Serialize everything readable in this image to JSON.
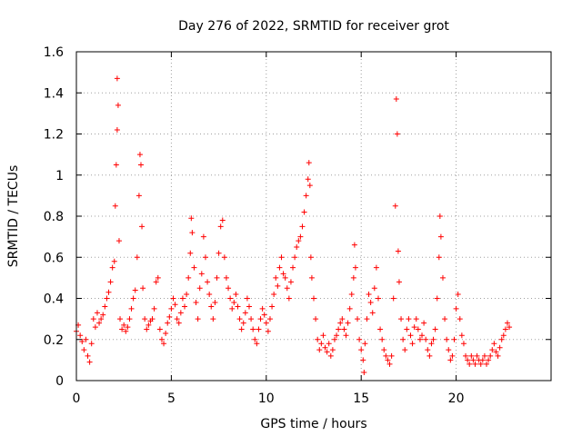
{
  "chart_data": {
    "type": "scatter",
    "title": "Day 276 of 2022, SRMTID for receiver grot",
    "xlabel": "GPS time / hours",
    "ylabel": "SRMTID / TECUs",
    "xlim": [
      0,
      25
    ],
    "ylim": [
      0,
      1.6
    ],
    "xticks": [
      0,
      5,
      10,
      15,
      20
    ],
    "xtick_labels": [
      "0",
      "5",
      "10",
      "15",
      "20"
    ],
    "yticks": [
      0,
      0.2,
      0.4,
      0.6,
      0.8,
      1.0,
      1.2,
      1.4,
      1.6
    ],
    "ytick_labels": [
      "0",
      "0.2",
      "0.4",
      "0.6",
      "0.8",
      "1",
      "1.2",
      "1.4",
      "1.6"
    ],
    "grid": true,
    "marker": "plus",
    "marker_color": "#ff0000",
    "series": [
      {
        "name": "SRMTID",
        "points": [
          [
            0.0,
            0.24
          ],
          [
            0.1,
            0.27
          ],
          [
            0.2,
            0.22
          ],
          [
            0.3,
            0.19
          ],
          [
            0.4,
            0.15
          ],
          [
            0.5,
            0.2
          ],
          [
            0.6,
            0.12
          ],
          [
            0.7,
            0.09
          ],
          [
            0.8,
            0.18
          ],
          [
            0.9,
            0.3
          ],
          [
            1.0,
            0.26
          ],
          [
            1.1,
            0.33
          ],
          [
            1.2,
            0.28
          ],
          [
            1.3,
            0.3
          ],
          [
            1.4,
            0.32
          ],
          [
            1.5,
            0.36
          ],
          [
            1.6,
            0.4
          ],
          [
            1.7,
            0.43
          ],
          [
            1.8,
            0.48
          ],
          [
            1.9,
            0.55
          ],
          [
            2.0,
            0.58
          ],
          [
            2.05,
            0.85
          ],
          [
            2.1,
            1.05
          ],
          [
            2.15,
            1.22
          ],
          [
            2.15,
            1.47
          ],
          [
            2.2,
            1.34
          ],
          [
            2.25,
            0.68
          ],
          [
            2.3,
            0.3
          ],
          [
            2.4,
            0.25
          ],
          [
            2.5,
            0.27
          ],
          [
            2.6,
            0.24
          ],
          [
            2.7,
            0.26
          ],
          [
            2.8,
            0.3
          ],
          [
            2.9,
            0.35
          ],
          [
            3.0,
            0.4
          ],
          [
            3.1,
            0.44
          ],
          [
            3.2,
            0.6
          ],
          [
            3.3,
            0.9
          ],
          [
            3.35,
            1.1
          ],
          [
            3.4,
            1.05
          ],
          [
            3.45,
            0.75
          ],
          [
            3.5,
            0.45
          ],
          [
            3.6,
            0.3
          ],
          [
            3.7,
            0.25
          ],
          [
            3.8,
            0.27
          ],
          [
            3.9,
            0.29
          ],
          [
            4.0,
            0.3
          ],
          [
            4.1,
            0.35
          ],
          [
            4.2,
            0.48
          ],
          [
            4.3,
            0.5
          ],
          [
            4.4,
            0.25
          ],
          [
            4.5,
            0.2
          ],
          [
            4.6,
            0.18
          ],
          [
            4.7,
            0.23
          ],
          [
            4.8,
            0.28
          ],
          [
            4.9,
            0.31
          ],
          [
            5.0,
            0.35
          ],
          [
            5.1,
            0.4
          ],
          [
            5.2,
            0.37
          ],
          [
            5.3,
            0.3
          ],
          [
            5.4,
            0.28
          ],
          [
            5.5,
            0.33
          ],
          [
            5.6,
            0.4
          ],
          [
            5.7,
            0.36
          ],
          [
            5.8,
            0.42
          ],
          [
            5.9,
            0.5
          ],
          [
            6.0,
            0.62
          ],
          [
            6.05,
            0.79
          ],
          [
            6.1,
            0.72
          ],
          [
            6.2,
            0.55
          ],
          [
            6.3,
            0.38
          ],
          [
            6.4,
            0.3
          ],
          [
            6.5,
            0.45
          ],
          [
            6.6,
            0.52
          ],
          [
            6.7,
            0.7
          ],
          [
            6.8,
            0.6
          ],
          [
            6.9,
            0.48
          ],
          [
            7.0,
            0.42
          ],
          [
            7.1,
            0.36
          ],
          [
            7.2,
            0.3
          ],
          [
            7.3,
            0.38
          ],
          [
            7.4,
            0.5
          ],
          [
            7.5,
            0.62
          ],
          [
            7.6,
            0.75
          ],
          [
            7.7,
            0.78
          ],
          [
            7.8,
            0.6
          ],
          [
            7.9,
            0.5
          ],
          [
            8.0,
            0.45
          ],
          [
            8.1,
            0.4
          ],
          [
            8.2,
            0.35
          ],
          [
            8.3,
            0.38
          ],
          [
            8.4,
            0.42
          ],
          [
            8.5,
            0.36
          ],
          [
            8.6,
            0.3
          ],
          [
            8.7,
            0.25
          ],
          [
            8.8,
            0.28
          ],
          [
            8.9,
            0.33
          ],
          [
            9.0,
            0.4
          ],
          [
            9.1,
            0.36
          ],
          [
            9.2,
            0.3
          ],
          [
            9.3,
            0.25
          ],
          [
            9.4,
            0.2
          ],
          [
            9.5,
            0.18
          ],
          [
            9.6,
            0.25
          ],
          [
            9.7,
            0.3
          ],
          [
            9.8,
            0.35
          ],
          [
            9.9,
            0.32
          ],
          [
            10.0,
            0.28
          ],
          [
            10.1,
            0.24
          ],
          [
            10.2,
            0.3
          ],
          [
            10.3,
            0.36
          ],
          [
            10.4,
            0.42
          ],
          [
            10.5,
            0.5
          ],
          [
            10.6,
            0.46
          ],
          [
            10.7,
            0.55
          ],
          [
            10.8,
            0.6
          ],
          [
            10.9,
            0.52
          ],
          [
            11.0,
            0.5
          ],
          [
            11.1,
            0.45
          ],
          [
            11.2,
            0.4
          ],
          [
            11.3,
            0.48
          ],
          [
            11.4,
            0.55
          ],
          [
            11.5,
            0.6
          ],
          [
            11.6,
            0.65
          ],
          [
            11.7,
            0.68
          ],
          [
            11.8,
            0.7
          ],
          [
            11.9,
            0.75
          ],
          [
            12.0,
            0.82
          ],
          [
            12.1,
            0.9
          ],
          [
            12.2,
            0.98
          ],
          [
            12.25,
            1.06
          ],
          [
            12.3,
            0.95
          ],
          [
            12.35,
            0.6
          ],
          [
            12.4,
            0.5
          ],
          [
            12.5,
            0.4
          ],
          [
            12.6,
            0.3
          ],
          [
            12.7,
            0.2
          ],
          [
            12.8,
            0.15
          ],
          [
            12.9,
            0.18
          ],
          [
            13.0,
            0.22
          ],
          [
            13.1,
            0.16
          ],
          [
            13.2,
            0.14
          ],
          [
            13.3,
            0.18
          ],
          [
            13.4,
            0.12
          ],
          [
            13.5,
            0.15
          ],
          [
            13.6,
            0.2
          ],
          [
            13.7,
            0.22
          ],
          [
            13.8,
            0.25
          ],
          [
            13.9,
            0.28
          ],
          [
            14.0,
            0.3
          ],
          [
            14.1,
            0.25
          ],
          [
            14.2,
            0.22
          ],
          [
            14.3,
            0.28
          ],
          [
            14.4,
            0.35
          ],
          [
            14.5,
            0.42
          ],
          [
            14.6,
            0.5
          ],
          [
            14.65,
            0.66
          ],
          [
            14.7,
            0.55
          ],
          [
            14.8,
            0.3
          ],
          [
            14.9,
            0.2
          ],
          [
            15.0,
            0.15
          ],
          [
            15.1,
            0.1
          ],
          [
            15.15,
            0.04
          ],
          [
            15.2,
            0.18
          ],
          [
            15.3,
            0.3
          ],
          [
            15.4,
            0.42
          ],
          [
            15.5,
            0.38
          ],
          [
            15.6,
            0.33
          ],
          [
            15.7,
            0.45
          ],
          [
            15.8,
            0.55
          ],
          [
            15.9,
            0.4
          ],
          [
            16.0,
            0.25
          ],
          [
            16.1,
            0.2
          ],
          [
            16.2,
            0.15
          ],
          [
            16.3,
            0.12
          ],
          [
            16.4,
            0.1
          ],
          [
            16.5,
            0.08
          ],
          [
            16.6,
            0.12
          ],
          [
            16.7,
            0.4
          ],
          [
            16.8,
            0.85
          ],
          [
            16.85,
            1.37
          ],
          [
            16.9,
            1.2
          ],
          [
            16.95,
            0.63
          ],
          [
            17.0,
            0.48
          ],
          [
            17.1,
            0.3
          ],
          [
            17.2,
            0.2
          ],
          [
            17.3,
            0.15
          ],
          [
            17.4,
            0.25
          ],
          [
            17.5,
            0.3
          ],
          [
            17.6,
            0.22
          ],
          [
            17.7,
            0.18
          ],
          [
            17.8,
            0.26
          ],
          [
            17.9,
            0.3
          ],
          [
            18.0,
            0.25
          ],
          [
            18.1,
            0.2
          ],
          [
            18.2,
            0.22
          ],
          [
            18.3,
            0.28
          ],
          [
            18.4,
            0.2
          ],
          [
            18.5,
            0.15
          ],
          [
            18.6,
            0.12
          ],
          [
            18.7,
            0.18
          ],
          [
            18.8,
            0.2
          ],
          [
            18.9,
            0.25
          ],
          [
            19.0,
            0.4
          ],
          [
            19.1,
            0.6
          ],
          [
            19.15,
            0.8
          ],
          [
            19.2,
            0.7
          ],
          [
            19.3,
            0.5
          ],
          [
            19.4,
            0.3
          ],
          [
            19.5,
            0.2
          ],
          [
            19.6,
            0.15
          ],
          [
            19.7,
            0.1
          ],
          [
            19.8,
            0.12
          ],
          [
            19.9,
            0.2
          ],
          [
            20.0,
            0.35
          ],
          [
            20.1,
            0.42
          ],
          [
            20.2,
            0.3
          ],
          [
            20.3,
            0.22
          ],
          [
            20.4,
            0.18
          ],
          [
            20.5,
            0.12
          ],
          [
            20.6,
            0.1
          ],
          [
            20.7,
            0.08
          ],
          [
            20.8,
            0.12
          ],
          [
            20.9,
            0.1
          ],
          [
            21.0,
            0.08
          ],
          [
            21.1,
            0.12
          ],
          [
            21.2,
            0.1
          ],
          [
            21.3,
            0.08
          ],
          [
            21.4,
            0.1
          ],
          [
            21.5,
            0.12
          ],
          [
            21.6,
            0.08
          ],
          [
            21.7,
            0.1
          ],
          [
            21.8,
            0.12
          ],
          [
            21.9,
            0.15
          ],
          [
            22.0,
            0.18
          ],
          [
            22.1,
            0.14
          ],
          [
            22.2,
            0.12
          ],
          [
            22.3,
            0.16
          ],
          [
            22.4,
            0.2
          ],
          [
            22.5,
            0.22
          ],
          [
            22.6,
            0.25
          ],
          [
            22.7,
            0.28
          ],
          [
            22.8,
            0.26
          ]
        ]
      }
    ]
  }
}
